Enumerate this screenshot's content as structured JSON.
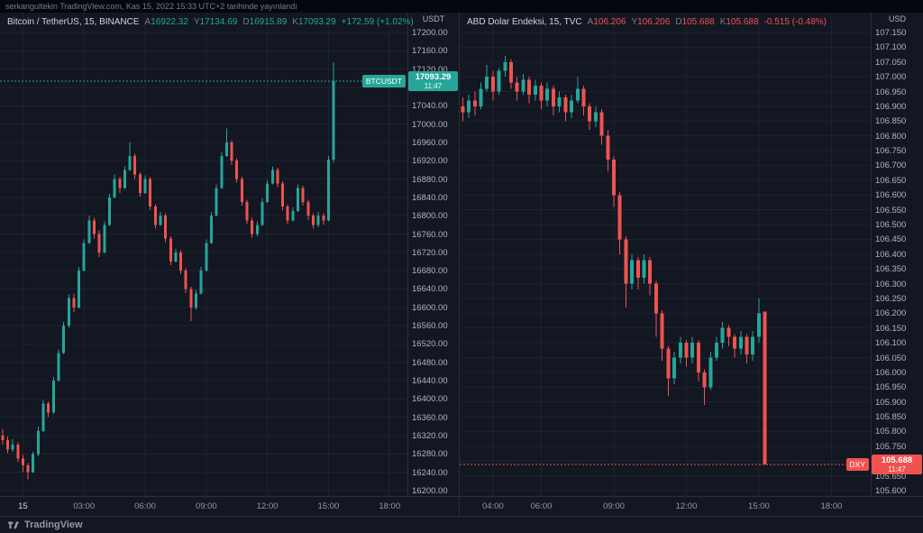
{
  "header": {
    "publish_text": "serkangultekin TradingView.com, Kas 15, 2022 15:33 UTC+2 tarihinde yayınlandı"
  },
  "footer": {
    "logo_text": "TradingView"
  },
  "colors": {
    "up": "#26a69a",
    "down": "#ef5350",
    "background": "#131722",
    "grid": "#1c2130",
    "panel_border": "#2a2e39",
    "text": "#d1d4dc",
    "muted": "#787b86",
    "axis_text": "#b2b5be"
  },
  "chart_data": [
    {
      "type": "candlestick",
      "title": "Bitcoin / TetherUS, 15, BINANCE",
      "interval": "15",
      "axis_unit": "USDT",
      "legend": {
        "direction": "up",
        "items": [
          {
            "k": "A",
            "v": "16922.32"
          },
          {
            "k": "Y",
            "v": "17134.69"
          },
          {
            "k": "D",
            "v": "16915.89"
          },
          {
            "k": "K",
            "v": "17093.29"
          }
        ],
        "change": "+172.59 (+1.02%)"
      },
      "price_flag": {
        "symbol": "BTCUSDT",
        "price": "17093.29",
        "time": "11:47"
      },
      "last_price": 17093.29,
      "y_axis": {
        "min": 16200,
        "max": 17200,
        "step": 40,
        "decimals": 2
      },
      "slots": 80,
      "time_labels": [
        {
          "t": "15",
          "i": 4,
          "day": true
        },
        {
          "t": "03:00",
          "i": 16
        },
        {
          "t": "06:00",
          "i": 28
        },
        {
          "t": "09:00",
          "i": 40
        },
        {
          "t": "12:00",
          "i": 52
        },
        {
          "t": "15:00",
          "i": 64
        },
        {
          "t": "18:00",
          "i": 76
        }
      ],
      "ohlc": [
        [
          16320,
          16335,
          16300,
          16310
        ],
        [
          16310,
          16318,
          16282,
          16290
        ],
        [
          16290,
          16312,
          16285,
          16300
        ],
        [
          16300,
          16305,
          16262,
          16270
        ],
        [
          16270,
          16278,
          16240,
          16255
        ],
        [
          16255,
          16260,
          16225,
          16240
        ],
        [
          16240,
          16285,
          16238,
          16280
        ],
        [
          16280,
          16340,
          16275,
          16330
        ],
        [
          16330,
          16398,
          16328,
          16390
        ],
        [
          16390,
          16395,
          16360,
          16370
        ],
        [
          16370,
          16448,
          16368,
          16440
        ],
        [
          16440,
          16508,
          16438,
          16500
        ],
        [
          16500,
          16568,
          16498,
          16560
        ],
        [
          16560,
          16628,
          16555,
          16620
        ],
        [
          16620,
          16630,
          16590,
          16600
        ],
        [
          16600,
          16688,
          16598,
          16680
        ],
        [
          16680,
          16748,
          16678,
          16740
        ],
        [
          16740,
          16800,
          16738,
          16790
        ],
        [
          16790,
          16795,
          16750,
          16760
        ],
        [
          16760,
          16768,
          16710,
          16720
        ],
        [
          16720,
          16788,
          16718,
          16780
        ],
        [
          16780,
          16848,
          16778,
          16840
        ],
        [
          16840,
          16890,
          16838,
          16880
        ],
        [
          16880,
          16885,
          16850,
          16860
        ],
        [
          16860,
          16908,
          16858,
          16900
        ],
        [
          16900,
          16960,
          16898,
          16930
        ],
        [
          16930,
          16935,
          16880,
          16890
        ],
        [
          16890,
          16895,
          16842,
          16850
        ],
        [
          16850,
          16888,
          16848,
          16880
        ],
        [
          16880,
          16885,
          16812,
          16820
        ],
        [
          16820,
          16825,
          16772,
          16780
        ],
        [
          16780,
          16808,
          16778,
          16800
        ],
        [
          16800,
          16805,
          16742,
          16750
        ],
        [
          16750,
          16755,
          16692,
          16700
        ],
        [
          16700,
          16728,
          16698,
          16720
        ],
        [
          16720,
          16725,
          16672,
          16680
        ],
        [
          16680,
          16685,
          16632,
          16640
        ],
        [
          16640,
          16645,
          16570,
          16600
        ],
        [
          16600,
          16638,
          16595,
          16630
        ],
        [
          16630,
          16688,
          16628,
          16680
        ],
        [
          16680,
          16748,
          16678,
          16740
        ],
        [
          16740,
          16808,
          16738,
          16800
        ],
        [
          16800,
          16868,
          16798,
          16860
        ],
        [
          16860,
          16938,
          16858,
          16930
        ],
        [
          16930,
          16990,
          16928,
          16960
        ],
        [
          16960,
          16965,
          16912,
          16920
        ],
        [
          16920,
          16925,
          16872,
          16880
        ],
        [
          16880,
          16885,
          16822,
          16830
        ],
        [
          16830,
          16835,
          16782,
          16790
        ],
        [
          16790,
          16795,
          16752,
          16760
        ],
        [
          16760,
          16788,
          16755,
          16780
        ],
        [
          16780,
          16838,
          16778,
          16830
        ],
        [
          16830,
          16878,
          16828,
          16870
        ],
        [
          16870,
          16908,
          16868,
          16900
        ],
        [
          16900,
          16905,
          16862,
          16870
        ],
        [
          16870,
          16875,
          16812,
          16820
        ],
        [
          16820,
          16825,
          16782,
          16790
        ],
        [
          16790,
          16818,
          16788,
          16810
        ],
        [
          16810,
          16868,
          16808,
          16860
        ],
        [
          16860,
          16865,
          16822,
          16830
        ],
        [
          16830,
          16835,
          16792,
          16800
        ],
        [
          16800,
          16805,
          16772,
          16780
        ],
        [
          16780,
          16808,
          16775,
          16800
        ],
        [
          16800,
          16805,
          16780,
          16790
        ],
        [
          16790,
          16930,
          16788,
          16922
        ],
        [
          16922.32,
          17134.69,
          16915.89,
          17093.29
        ]
      ]
    },
    {
      "type": "candlestick",
      "title": "ABD Dolar Endeksi, 15, TVC",
      "interval": "15",
      "axis_unit": "USD",
      "legend": {
        "direction": "down",
        "items": [
          {
            "k": "A",
            "v": "106.206"
          },
          {
            "k": "Y",
            "v": "106.206"
          },
          {
            "k": "D",
            "v": "105.688"
          },
          {
            "k": "K",
            "v": "105.688"
          }
        ],
        "change": "-0.515 (-0.48%)"
      },
      "price_flag": {
        "symbol": "DXY",
        "price": "105.688",
        "time": "11:47"
      },
      "last_price": 105.688,
      "y_axis": {
        "min": 105.6,
        "max": 107.15,
        "step": 0.05,
        "decimals": 3
      },
      "slots": 68,
      "time_labels": [
        {
          "t": "04:00",
          "i": 5
        },
        {
          "t": "06:00",
          "i": 13
        },
        {
          "t": "09:00",
          "i": 25
        },
        {
          "t": "12:00",
          "i": 37
        },
        {
          "t": "15:00",
          "i": 49
        },
        {
          "t": "18:00",
          "i": 61
        }
      ],
      "ohlc": [
        [
          106.9,
          106.93,
          106.85,
          106.88
        ],
        [
          106.88,
          106.94,
          106.86,
          106.92
        ],
        [
          106.92,
          106.95,
          106.87,
          106.9
        ],
        [
          106.9,
          106.98,
          106.89,
          106.96
        ],
        [
          106.96,
          107.04,
          106.95,
          107.0
        ],
        [
          107.0,
          107.02,
          106.92,
          106.95
        ],
        [
          106.95,
          107.03,
          106.94,
          107.02
        ],
        [
          107.02,
          107.07,
          107.0,
          107.05
        ],
        [
          107.05,
          107.06,
          106.96,
          106.98
        ],
        [
          106.98,
          107.0,
          106.92,
          106.95
        ],
        [
          106.95,
          107.01,
          106.94,
          106.99
        ],
        [
          106.99,
          107.0,
          106.91,
          106.94
        ],
        [
          106.94,
          106.99,
          106.92,
          106.97
        ],
        [
          106.97,
          106.98,
          106.89,
          106.92
        ],
        [
          106.92,
          106.98,
          106.9,
          106.96
        ],
        [
          106.96,
          106.97,
          106.87,
          106.9
        ],
        [
          106.9,
          106.95,
          106.88,
          106.93
        ],
        [
          106.93,
          106.94,
          106.85,
          106.88
        ],
        [
          106.88,
          106.94,
          106.86,
          106.92
        ],
        [
          106.92,
          107.0,
          106.91,
          106.96
        ],
        [
          106.96,
          106.97,
          106.87,
          106.9
        ],
        [
          106.9,
          106.91,
          106.82,
          106.85
        ],
        [
          106.85,
          106.9,
          106.83,
          106.88
        ],
        [
          106.88,
          106.89,
          106.77,
          106.8
        ],
        [
          106.8,
          106.82,
          106.68,
          106.72
        ],
        [
          106.72,
          106.73,
          106.56,
          106.6
        ],
        [
          106.6,
          106.61,
          106.4,
          106.45
        ],
        [
          106.45,
          106.46,
          106.22,
          106.3
        ],
        [
          106.3,
          106.4,
          106.28,
          106.38
        ],
        [
          106.38,
          106.39,
          106.28,
          106.32
        ],
        [
          106.32,
          106.4,
          106.3,
          106.38
        ],
        [
          106.38,
          106.39,
          106.26,
          106.3
        ],
        [
          106.3,
          106.31,
          106.12,
          106.2
        ],
        [
          106.2,
          106.21,
          106.04,
          106.08
        ],
        [
          106.08,
          106.09,
          105.92,
          105.98
        ],
        [
          105.98,
          106.07,
          105.96,
          106.05
        ],
        [
          106.05,
          106.12,
          106.03,
          106.1
        ],
        [
          106.1,
          106.11,
          106.02,
          106.05
        ],
        [
          106.05,
          106.12,
          106.03,
          106.1
        ],
        [
          106.1,
          106.11,
          105.97,
          106.0
        ],
        [
          106.0,
          106.01,
          105.89,
          105.95
        ],
        [
          105.95,
          106.07,
          105.94,
          106.05
        ],
        [
          106.05,
          106.12,
          106.04,
          106.1
        ],
        [
          106.1,
          106.17,
          106.08,
          106.15
        ],
        [
          106.15,
          106.16,
          106.09,
          106.12
        ],
        [
          106.12,
          106.13,
          106.05,
          106.08
        ],
        [
          106.08,
          106.14,
          106.06,
          106.12
        ],
        [
          106.12,
          106.13,
          106.03,
          106.06
        ],
        [
          106.06,
          106.14,
          106.04,
          106.12
        ],
        [
          106.12,
          106.25,
          106.1,
          106.2
        ],
        [
          106.206,
          106.206,
          105.688,
          105.688
        ]
      ]
    }
  ]
}
